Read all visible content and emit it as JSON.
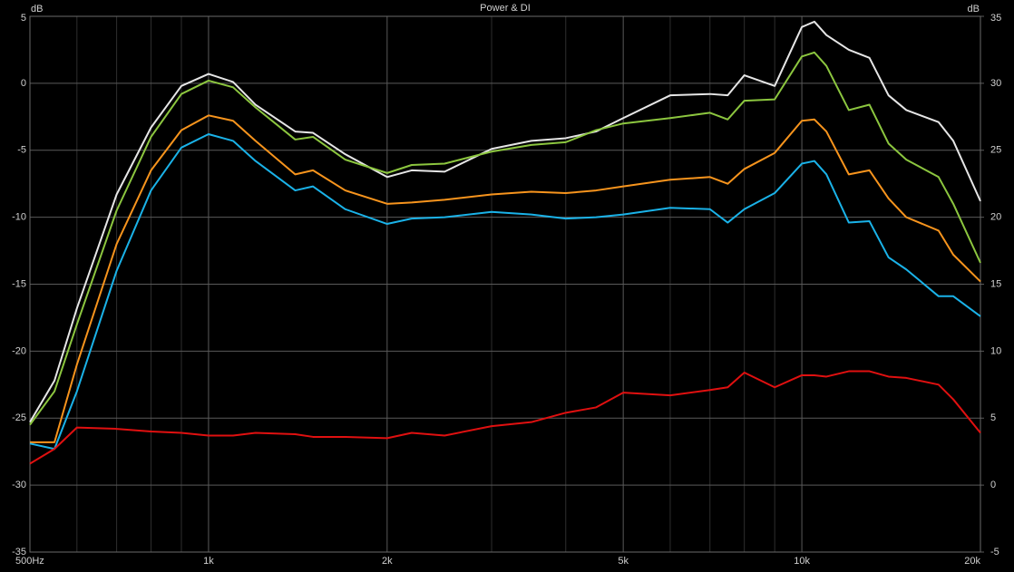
{
  "chart_data": {
    "type": "line",
    "title": "Power & DI",
    "y_label": "dB",
    "y2_label": "dB",
    "x_scale": "log",
    "grid": true,
    "x": [
      500,
      550,
      600,
      700,
      800,
      900,
      1000,
      1100,
      1200,
      1400,
      1500,
      1700,
      2000,
      2200,
      2500,
      3000,
      3500,
      4000,
      4500,
      5000,
      6000,
      7000,
      7500,
      8000,
      9000,
      10000,
      10500,
      11000,
      12000,
      13000,
      14000,
      15000,
      17000,
      18000,
      20000
    ],
    "xlim": [
      500,
      20000
    ],
    "xticks": [
      {
        "value": 500,
        "label": "500Hz"
      },
      {
        "value": 1000,
        "label": "1k"
      },
      {
        "value": 2000,
        "label": "2k"
      },
      {
        "value": 5000,
        "label": "5k"
      },
      {
        "value": 10000,
        "label": "10k"
      },
      {
        "value": 20000,
        "label": "20k"
      }
    ],
    "xminorticks": [
      600,
      700,
      800,
      900,
      3000,
      4000,
      6000,
      7000,
      8000,
      9000
    ],
    "ylim": [
      -35,
      5
    ],
    "yticks": [
      -35,
      -30,
      -25,
      -20,
      -15,
      -10,
      -5,
      0,
      5
    ],
    "y2lim": [
      -5,
      35
    ],
    "y2ticks": [
      -5,
      0,
      5,
      10,
      15,
      20,
      25,
      30,
      35
    ],
    "series": [
      {
        "color": "#e6e6e6",
        "values": [
          -25.3,
          -22.2,
          -16.8,
          -8.3,
          -3.3,
          -0.2,
          0.7,
          0.1,
          -1.6,
          -3.6,
          -3.7,
          -5.3,
          -7.0,
          -6.5,
          -6.6,
          -4.9,
          -4.3,
          -4.1,
          -3.6,
          -2.6,
          -0.9,
          -0.8,
          -0.9,
          0.6,
          -0.2,
          4.2,
          4.6,
          3.6,
          2.5,
          1.9,
          -0.9,
          -2.0,
          -2.9,
          -4.3,
          -8.8
        ]
      },
      {
        "color": "#8cc63f",
        "values": [
          -25.5,
          -23.0,
          -18.0,
          -9.5,
          -4.0,
          -0.8,
          0.2,
          -0.3,
          -1.8,
          -4.2,
          -4.0,
          -5.7,
          -6.7,
          -6.1,
          -6.0,
          -5.1,
          -4.6,
          -4.4,
          -3.5,
          -3.0,
          -2.6,
          -2.2,
          -2.7,
          -1.3,
          -1.2,
          2.0,
          2.3,
          1.3,
          -2.0,
          -1.6,
          -4.5,
          -5.7,
          -7.0,
          -9.0,
          -13.4
        ]
      },
      {
        "color": "#f7941d",
        "values": [
          -26.8,
          -26.8,
          -21.0,
          -12.0,
          -6.5,
          -3.5,
          -2.4,
          -2.8,
          -4.3,
          -6.8,
          -6.5,
          -8.0,
          -9.0,
          -8.9,
          -8.7,
          -8.3,
          -8.1,
          -8.2,
          -8.0,
          -7.7,
          -7.2,
          -7.0,
          -7.5,
          -6.4,
          -5.2,
          -2.8,
          -2.7,
          -3.6,
          -6.8,
          -6.5,
          -8.6,
          -10.0,
          -11.0,
          -12.8,
          -14.8
        ]
      },
      {
        "color": "#1ab2e8",
        "values": [
          -26.9,
          -27.3,
          -23.0,
          -14.0,
          -8.0,
          -4.8,
          -3.8,
          -4.3,
          -5.8,
          -8.0,
          -7.7,
          -9.4,
          -10.5,
          -10.1,
          -10.0,
          -9.6,
          -9.8,
          -10.1,
          -10.0,
          -9.8,
          -9.3,
          -9.4,
          -10.4,
          -9.4,
          -8.2,
          -6.0,
          -5.8,
          -6.8,
          -10.4,
          -10.3,
          -13.0,
          -13.9,
          -15.9,
          -15.9,
          -17.4
        ]
      },
      {
        "color": "#e01010",
        "axis": "y2",
        "values": [
          1.6,
          2.7,
          4.3,
          4.2,
          4.0,
          3.9,
          3.7,
          3.7,
          3.9,
          3.8,
          3.6,
          3.6,
          3.5,
          3.9,
          3.7,
          4.4,
          4.7,
          5.4,
          5.8,
          6.9,
          6.7,
          7.1,
          7.3,
          8.4,
          7.3,
          8.2,
          8.2,
          8.1,
          8.5,
          8.5,
          8.1,
          8.0,
          7.5,
          6.4,
          3.9
        ]
      }
    ]
  }
}
